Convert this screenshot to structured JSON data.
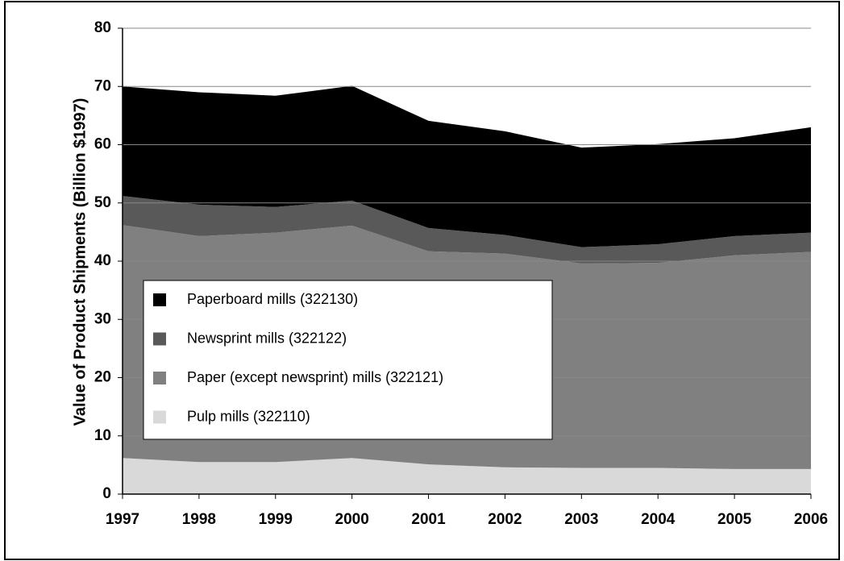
{
  "chart_data": {
    "type": "stacked-area",
    "y_label": "Value of Product Shipments (Billion $1997)",
    "categories": [
      "1997",
      "1998",
      "1999",
      "2000",
      "2001",
      "2002",
      "2003",
      "2004",
      "2005",
      "2006"
    ],
    "series": [
      {
        "name": "Pulp mills (322110)",
        "color": "#d9d9d9",
        "values": [
          6.2,
          5.5,
          5.5,
          6.2,
          5.1,
          4.6,
          4.5,
          4.5,
          4.3,
          4.3
        ]
      },
      {
        "name": "Paper (except newsprint) mills (322121)",
        "color": "#808080",
        "values": [
          40.0,
          38.8,
          39.4,
          39.9,
          36.6,
          36.7,
          35.1,
          35.2,
          36.7,
          37.3
        ]
      },
      {
        "name": "Newsprint mills (322122)",
        "color": "#595959",
        "values": [
          5.0,
          5.4,
          4.4,
          4.3,
          4.0,
          3.2,
          2.8,
          3.2,
          3.3,
          3.3
        ]
      },
      {
        "name": "Paperboard mills (322130)",
        "color": "#000000",
        "values": [
          18.8,
          19.3,
          19.1,
          19.7,
          18.4,
          17.8,
          17.1,
          17.2,
          16.8,
          18.1
        ]
      }
    ],
    "ylim": [
      0,
      80
    ],
    "yticks": [
      0,
      10,
      20,
      30,
      40,
      50,
      60,
      70,
      80
    ],
    "grid": true
  }
}
